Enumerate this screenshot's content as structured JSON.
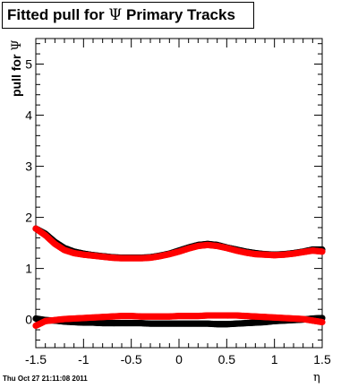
{
  "chart_data": {
    "type": "scatter",
    "title_prefix": "Fitted pull for",
    "title_symbol": "Ψ",
    "title_suffix": "Primary Tracks",
    "ylabel_prefix": "pull for",
    "ylabel_symbol": "Ψ",
    "xlabel": "η",
    "xlim": [
      -1.5,
      1.5
    ],
    "ylim": [
      -0.55,
      5.5
    ],
    "x_ticks": [
      -1.5,
      -1,
      -0.5,
      0,
      0.5,
      1,
      1.5
    ],
    "x_tick_labels": [
      "-1.5",
      "-1",
      "-0.5",
      "0",
      "0.5",
      "1",
      "1.5"
    ],
    "y_ticks": [
      0,
      1,
      2,
      3,
      4,
      5
    ],
    "y_tick_labels": [
      "0",
      "1",
      "2",
      "3",
      "4",
      "5"
    ],
    "grid": false,
    "series": [
      {
        "color": "#000000",
        "x": [
          -1.5,
          -1.4,
          -1.3,
          -1.2,
          -1.1,
          -1.0,
          -0.9,
          -0.8,
          -0.7,
          -0.6,
          -0.5,
          -0.4,
          -0.3,
          -0.2,
          -0.1,
          0.0,
          0.1,
          0.2,
          0.3,
          0.4,
          0.5,
          0.6,
          0.7,
          0.8,
          0.9,
          1.0,
          1.1,
          1.2,
          1.3,
          1.4,
          1.5
        ],
        "y": [
          1.78,
          1.68,
          1.52,
          1.4,
          1.33,
          1.29,
          1.26,
          1.24,
          1.22,
          1.21,
          1.21,
          1.21,
          1.22,
          1.25,
          1.29,
          1.35,
          1.41,
          1.46,
          1.48,
          1.46,
          1.41,
          1.37,
          1.33,
          1.3,
          1.28,
          1.27,
          1.28,
          1.3,
          1.33,
          1.37,
          1.37
        ]
      },
      {
        "color": "#ff0000",
        "x": [
          -1.5,
          -1.4,
          -1.3,
          -1.2,
          -1.1,
          -1.0,
          -0.9,
          -0.8,
          -0.7,
          -0.6,
          -0.5,
          -0.4,
          -0.3,
          -0.2,
          -0.1,
          0.0,
          0.1,
          0.2,
          0.3,
          0.4,
          0.5,
          0.6,
          0.7,
          0.8,
          0.9,
          1.0,
          1.1,
          1.2,
          1.3,
          1.4,
          1.5
        ],
        "y": [
          1.78,
          1.65,
          1.48,
          1.36,
          1.3,
          1.27,
          1.25,
          1.23,
          1.21,
          1.2,
          1.2,
          1.2,
          1.21,
          1.24,
          1.28,
          1.33,
          1.39,
          1.44,
          1.46,
          1.44,
          1.4,
          1.35,
          1.31,
          1.28,
          1.27,
          1.26,
          1.27,
          1.29,
          1.32,
          1.35,
          1.33
        ]
      },
      {
        "color": "#000000",
        "x": [
          -1.5,
          -1.4,
          -1.3,
          -1.2,
          -1.1,
          -1.0,
          -0.9,
          -0.8,
          -0.7,
          -0.6,
          -0.5,
          -0.4,
          -0.3,
          -0.2,
          -0.1,
          0.0,
          0.1,
          0.2,
          0.3,
          0.4,
          0.5,
          0.6,
          0.7,
          0.8,
          0.9,
          1.0,
          1.1,
          1.2,
          1.3,
          1.4,
          1.5
        ],
        "y": [
          0.02,
          -0.01,
          -0.02,
          -0.04,
          -0.05,
          -0.06,
          -0.06,
          -0.07,
          -0.07,
          -0.07,
          -0.07,
          -0.07,
          -0.08,
          -0.08,
          -0.08,
          -0.08,
          -0.08,
          -0.08,
          -0.08,
          -0.09,
          -0.09,
          -0.08,
          -0.07,
          -0.06,
          -0.05,
          -0.03,
          -0.02,
          -0.01,
          0.0,
          0.02,
          0.03
        ]
      },
      {
        "color": "#ff0000",
        "x": [
          -1.5,
          -1.4,
          -1.3,
          -1.2,
          -1.1,
          -1.0,
          -0.9,
          -0.8,
          -0.7,
          -0.6,
          -0.5,
          -0.4,
          -0.3,
          -0.2,
          -0.1,
          0.0,
          0.1,
          0.2,
          0.3,
          0.4,
          0.5,
          0.6,
          0.7,
          0.8,
          0.9,
          1.0,
          1.1,
          1.2,
          1.3,
          1.4,
          1.5
        ],
        "y": [
          -0.12,
          -0.03,
          -0.01,
          0.01,
          0.02,
          0.03,
          0.04,
          0.05,
          0.06,
          0.07,
          0.07,
          0.06,
          0.06,
          0.06,
          0.06,
          0.07,
          0.07,
          0.07,
          0.08,
          0.08,
          0.08,
          0.08,
          0.07,
          0.06,
          0.05,
          0.04,
          0.03,
          0.02,
          0.01,
          -0.02,
          -0.05
        ]
      }
    ]
  },
  "footer": {
    "timestamp": "Thu Oct 27 21:11:08 2011"
  }
}
